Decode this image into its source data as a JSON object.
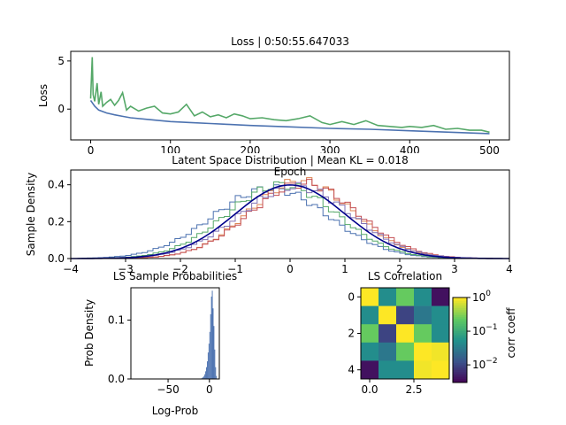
{
  "chart_data": [
    {
      "type": "line",
      "title": "Loss | 0:50:55.647033",
      "xlabel": "Epoch",
      "ylabel": "Loss",
      "xlim": [
        -25,
        525
      ],
      "ylim": [
        -3.2,
        6.0
      ],
      "xticks": [
        0,
        100,
        200,
        300,
        400,
        500
      ],
      "yticks": [
        0,
        5
      ],
      "series": [
        {
          "color": "#55a868",
          "x": [
            0,
            2,
            3,
            5,
            8,
            10,
            13,
            15,
            20,
            25,
            30,
            35,
            40,
            45,
            50,
            60,
            70,
            80,
            90,
            100,
            110,
            120,
            130,
            140,
            150,
            160,
            170,
            180,
            190,
            200,
            215,
            230,
            245,
            260,
            275,
            290,
            300,
            315,
            330,
            345,
            360,
            375,
            390,
            400,
            415,
            430,
            445,
            460,
            475,
            490,
            500
          ],
          "y": [
            1.1,
            5.4,
            1.5,
            0.8,
            2.7,
            0.5,
            1.8,
            0.3,
            0.7,
            1.0,
            0.4,
            0.9,
            1.7,
            -0.1,
            0.3,
            -0.2,
            0.1,
            0.3,
            -0.4,
            -0.5,
            -0.3,
            0.5,
            -0.7,
            -0.3,
            -0.8,
            -0.6,
            -0.9,
            -0.5,
            -0.7,
            -1.0,
            -0.9,
            -1.1,
            -1.2,
            -1.0,
            -0.7,
            -1.4,
            -1.6,
            -1.3,
            -1.6,
            -1.2,
            -1.7,
            -1.8,
            -1.9,
            -1.8,
            -1.9,
            -1.7,
            -2.1,
            -2.0,
            -2.2,
            -2.2,
            -2.4
          ]
        },
        {
          "color": "#4c72b0",
          "x": [
            0,
            5,
            10,
            20,
            30,
            40,
            50,
            75,
            100,
            125,
            150,
            175,
            200,
            250,
            300,
            350,
            400,
            450,
            500
          ],
          "y": [
            0.9,
            0.3,
            -0.1,
            -0.4,
            -0.6,
            -0.75,
            -0.9,
            -1.1,
            -1.3,
            -1.4,
            -1.5,
            -1.6,
            -1.7,
            -1.85,
            -2.0,
            -2.1,
            -2.25,
            -2.4,
            -2.55
          ]
        }
      ]
    },
    {
      "type": "line",
      "title": "Latent Space Distribution | Mean KL = 0.018",
      "xlabel": "",
      "ylabel": "Sample Density",
      "xlim": [
        -4,
        4
      ],
      "ylim": [
        0,
        0.48
      ],
      "xticks": [
        -4,
        -3,
        -2,
        -1,
        0,
        1,
        2,
        3,
        4
      ],
      "yticks": [
        0.0,
        0.2,
        0.4
      ],
      "reference_curve": {
        "kind": "standard-normal",
        "color": "#00008b"
      },
      "histograms": [
        {
          "color": "#4c72b0",
          "mean": -0.35,
          "sd": 1.05
        },
        {
          "color": "#dd8452",
          "mean": 0.2,
          "sd": 0.95
        },
        {
          "color": "#55a868",
          "mean": -0.15,
          "sd": 1.0
        },
        {
          "color": "#c44e52",
          "mean": 0.25,
          "sd": 0.98
        },
        {
          "color": "#8172b3",
          "mean": 0.1,
          "sd": 1.02
        }
      ]
    },
    {
      "type": "bar",
      "title": "LS Sample Probabilities",
      "xlabel": "Log-Prob",
      "ylabel": "Prob Density",
      "xlim": [
        -95,
        12
      ],
      "ylim": [
        0,
        0.155
      ],
      "xticks": [
        -50,
        0
      ],
      "yticks": [
        0.0,
        0.1
      ],
      "color": "#4c72b0",
      "bins": [
        -10,
        -9,
        -8,
        -7,
        -6,
        -5,
        -4,
        -3,
        -2,
        -1,
        0,
        1,
        2,
        3,
        4,
        5,
        6,
        7,
        8
      ],
      "values": [
        0.001,
        0.002,
        0.003,
        0.005,
        0.008,
        0.013,
        0.02,
        0.03,
        0.045,
        0.06,
        0.08,
        0.11,
        0.14,
        0.15,
        0.12,
        0.09,
        0.05,
        0.02,
        0.005
      ]
    },
    {
      "type": "heatmap",
      "title": "LS Correlation",
      "xticks": [
        0.0,
        2.5
      ],
      "yticks": [
        0,
        2,
        4
      ],
      "colorbar_label": "corr coeff",
      "colorbar_ticks": [
        "10^0",
        "10^-1",
        "10^-2"
      ],
      "colorbar_scale": "log",
      "vmin": 0.003,
      "vmax": 1.0,
      "matrix": [
        [
          1.0,
          0.05,
          0.25,
          0.05,
          0.004
        ],
        [
          0.05,
          1.0,
          0.01,
          0.03,
          0.05
        ],
        [
          0.25,
          0.01,
          1.0,
          0.25,
          0.05
        ],
        [
          0.05,
          0.03,
          0.25,
          1.0,
          0.9
        ],
        [
          0.004,
          0.05,
          0.05,
          0.9,
          1.0
        ]
      ]
    }
  ]
}
